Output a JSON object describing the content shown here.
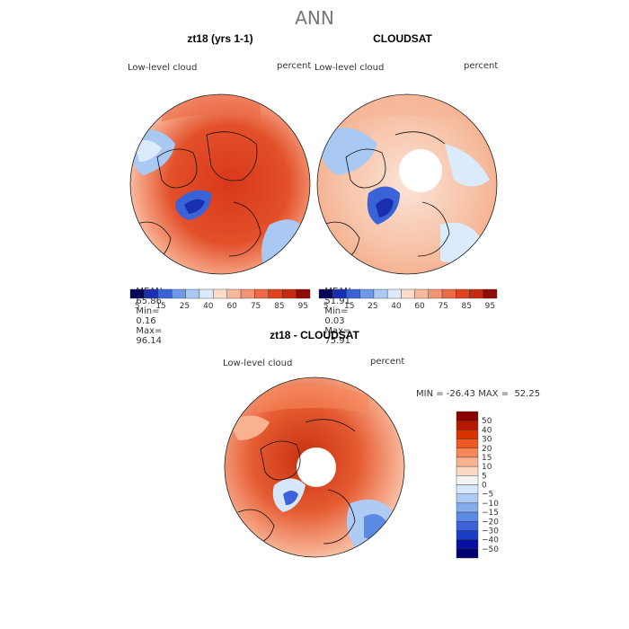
{
  "page_title": "ANN",
  "panels": [
    {
      "title": "zt18 (yrs 1-1)",
      "field_label": "Low-level cloud",
      "units": "percent",
      "stats": {
        "mean_label": "MEAN=",
        "mean": "65.86",
        "min_label": "Min=",
        "min": "0.16",
        "max_label": "Max=",
        "max": "96.14"
      }
    },
    {
      "title": "CLOUDSAT",
      "field_label": "Low-level cloud",
      "units": "percent",
      "stats": {
        "mean_label": "MEAN=",
        "mean": "51.91",
        "min_label": "Min=",
        "min": "0.03",
        "max_label": "Max=",
        "max": "75.91"
      }
    },
    {
      "title": "zt18 - CLOUDSAT",
      "field_label": "Low-level cloud",
      "units": "percent",
      "range_text": "MIN = -26.43 MAX =  52.25"
    }
  ],
  "colorbar_abs": {
    "colors": [
      "#05005a",
      "#1a2fb0",
      "#3a63d8",
      "#6e99e8",
      "#a9c8f2",
      "#dcebfb",
      "#fbdccb",
      "#f7b89b",
      "#f29373",
      "#ec6a48",
      "#e2431f",
      "#c72a12",
      "#8e0b06"
    ],
    "labels": [
      "5",
      "15",
      "25",
      "40",
      "60",
      "75",
      "85",
      "95"
    ]
  },
  "colorbar_diff": {
    "colors": [
      "#8b0000",
      "#b51a00",
      "#d93400",
      "#ee5a22",
      "#f6875a",
      "#f9b28f",
      "#fcd8c4",
      "#f4f4f4",
      "#d6e6fb",
      "#aecbf3",
      "#85aceb",
      "#5b8ae2",
      "#3b62d9",
      "#1b3ec8",
      "#060fa0",
      "#010070"
    ],
    "labels": [
      "50",
      "40",
      "30",
      "20",
      "15",
      "10",
      "5",
      "0",
      "−5",
      "−10",
      "−15",
      "−20",
      "−30",
      "−40",
      "−50"
    ]
  }
}
